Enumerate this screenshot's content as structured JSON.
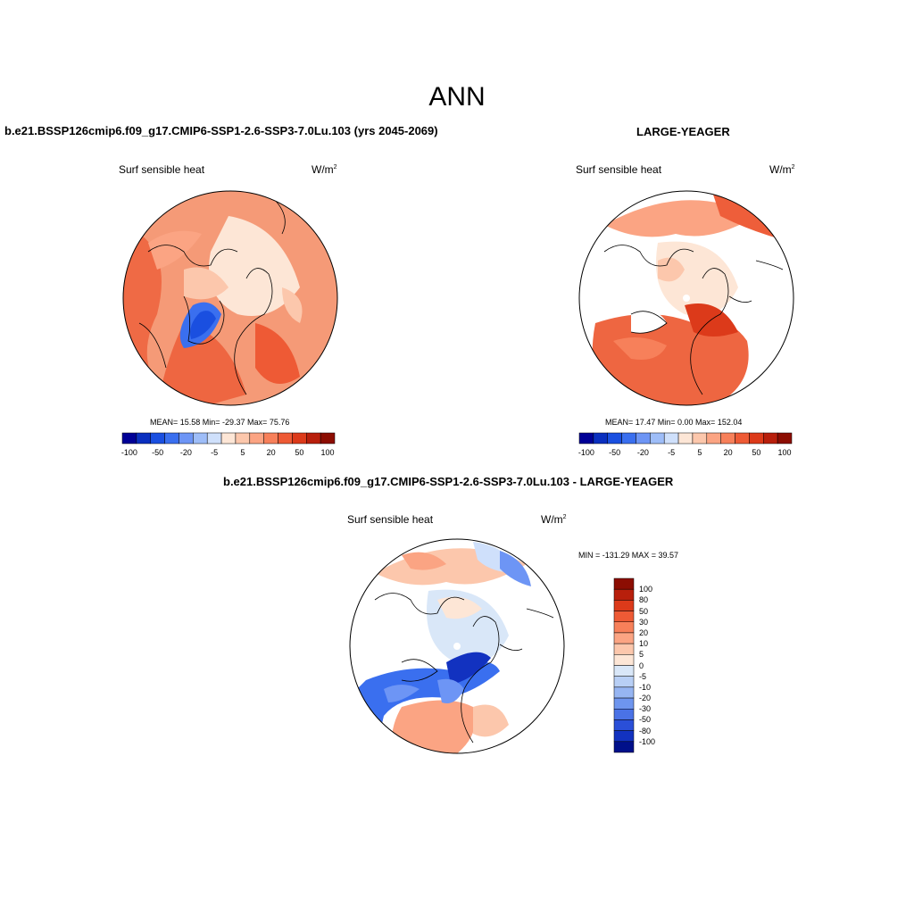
{
  "title": "ANN",
  "panels": [
    {
      "title": "b.e21.BSSP126cmip6.f09_g17.CMIP6-SSP1-2.6-SSP3-7.0Lu.103 (yrs 2045-2069)",
      "variable": "Surf sensible heat",
      "units_base": "W/m",
      "units_exp": "2",
      "stats": "MEAN=  15.58  Min= -29.37  Max=  75.76"
    },
    {
      "title": "LARGE-YEAGER",
      "variable": "Surf sensible heat",
      "units_base": "W/m",
      "units_exp": "2",
      "stats": "MEAN=  17.47  Min=   0.00  Max= 152.04"
    },
    {
      "title": "b.e21.BSSP126cmip6.f09_g17.CMIP6-SSP1-2.6-SSP3-7.0Lu.103 - LARGE-YEAGER",
      "variable": "Surf sensible heat",
      "units_base": "W/m",
      "units_exp": "2",
      "stats": "MIN = -131.29 MAX =  39.57"
    }
  ],
  "colorbar_top": {
    "colors": [
      "#000096",
      "#0a2fbf",
      "#1a4fe0",
      "#3a6fef",
      "#6d95f5",
      "#9ebdf8",
      "#cfe0fb",
      "#fde6d6",
      "#fcc7ac",
      "#fba483",
      "#f7805a",
      "#ee5a35",
      "#dc3a1a",
      "#b81f0c",
      "#8c0d02"
    ],
    "labels": [
      "-100",
      "-50",
      "-20",
      "-5",
      "5",
      "20",
      "50",
      "100"
    ]
  },
  "colorbar_diff": {
    "colors": [
      "#8c0d02",
      "#b81f0c",
      "#dc3a1a",
      "#ee5a35",
      "#f7805a",
      "#fba483",
      "#fcc7ac",
      "#fde6d6",
      "#d9e7f8",
      "#b8cff5",
      "#96b5f2",
      "#6e95ee",
      "#4a72e6",
      "#2a4fd8",
      "#1232c0",
      "#00108a"
    ],
    "labels": [
      "100",
      "80",
      "50",
      "30",
      "20",
      "10",
      "5",
      "0",
      "-5",
      "-10",
      "-20",
      "-30",
      "-50",
      "-80",
      "-100"
    ]
  }
}
